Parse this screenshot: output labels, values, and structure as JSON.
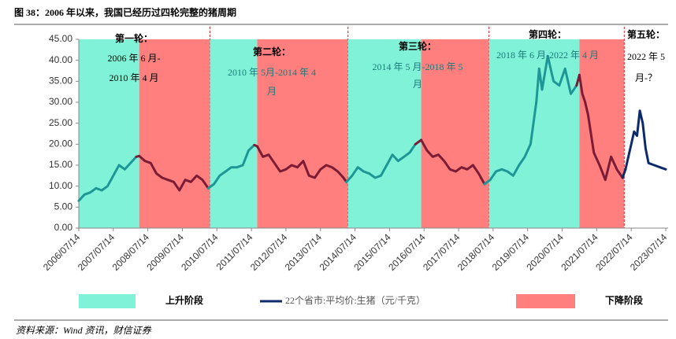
{
  "chart_data": {
    "type": "line",
    "title": "图 38：2006 年以来，我国已经历过四轮完整的猪周期",
    "source": "资料来源：Wind 资讯，财信证券",
    "ylim": [
      0,
      45
    ],
    "yticks": [
      {
        "value": 0,
        "label": "0.00"
      },
      {
        "value": 5,
        "label": "5.00"
      },
      {
        "value": 10,
        "label": "10.00"
      },
      {
        "value": 15,
        "label": "15.00"
      },
      {
        "value": 20,
        "label": "20.00"
      },
      {
        "value": 25,
        "label": "25.00"
      },
      {
        "value": 30,
        "label": "30.00"
      },
      {
        "value": 35,
        "label": "35.00"
      },
      {
        "value": 40,
        "label": "40.00"
      },
      {
        "value": 45,
        "label": "45.00"
      }
    ],
    "xlim": [
      "2006/07/14",
      "2023/07/14"
    ],
    "xticks": [
      "2006/07/14",
      "2007/07/14",
      "2008/07/14",
      "2009/07/14",
      "2010/07/14",
      "2011/07/14",
      "2012/07/14",
      "2013/07/14",
      "2014/07/14",
      "2015/07/14",
      "2016/07/14",
      "2017/07/14",
      "2018/07/14",
      "2019/07/14",
      "2020/07/14",
      "2021/07/14",
      "2022/07/14",
      "2023/07/14"
    ],
    "legend": {
      "rise": "上升阶段",
      "fall": "下降阶段"
    },
    "phase_colors": {
      "rise": "#80f2d8",
      "fall": "#ff7f7f"
    },
    "line_colors": {
      "rise": "#1f9696",
      "fall": "#7b1c34"
    },
    "divider_color": "#e0202a",
    "phases": [
      {
        "kind": "rise",
        "start": "2006/07/14",
        "end": "2008/04/14"
      },
      {
        "kind": "fall",
        "start": "2008/04/14",
        "end": "2010/05/01"
      },
      {
        "kind": "rise",
        "start": "2010/05/01",
        "end": "2011/09/14"
      },
      {
        "kind": "fall",
        "start": "2011/09/14",
        "end": "2014/05/01"
      },
      {
        "kind": "rise",
        "start": "2014/05/01",
        "end": "2016/06/14"
      },
      {
        "kind": "fall",
        "start": "2016/06/14",
        "end": "2018/06/01"
      },
      {
        "kind": "rise",
        "start": "2018/06/01",
        "end": "2021/01/14"
      },
      {
        "kind": "fall",
        "start": "2021/01/14",
        "end": "2022/05/01"
      }
    ],
    "annotations": [
      {
        "lines": [
          "第一轮：",
          "2006 年 6 月-",
          "2010 年 4 月"
        ],
        "colors": [
          "#000000",
          "#000000",
          "#000000"
        ]
      },
      {
        "lines": [
          "第二轮：",
          "2010 年 5月-2014 年 4",
          "月"
        ],
        "colors": [
          "#000000",
          "#1a7a7a",
          "#1a7a7a"
        ]
      },
      {
        "lines": [
          "第三轮：",
          "2014 年 5 月-2018 年 5",
          "月"
        ],
        "colors": [
          "#000000",
          "#1a7a7a",
          "#1a7a7a"
        ]
      },
      {
        "lines": [
          "第四轮：",
          "2018 年 6 月-2022 年 4 月"
        ],
        "colors": [
          "#000000",
          "#1a7a7a"
        ]
      },
      {
        "lines": [
          "第五轮：",
          "2022 年 5",
          "月-？"
        ],
        "colors": [
          "#000000",
          "#000000",
          "#000000"
        ]
      }
    ],
    "series": [
      {
        "name": "22个省市:平均价:生猪（元/千克）",
        "color": "#0d2a6b",
        "x": [
          "2006/07/14",
          "2006/09/14",
          "2006/11/14",
          "2007/01/14",
          "2007/03/14",
          "2007/05/14",
          "2007/07/14",
          "2007/09/14",
          "2007/11/14",
          "2008/01/14",
          "2008/03/14",
          "2008/04/14",
          "2008/06/14",
          "2008/08/14",
          "2008/10/14",
          "2008/12/14",
          "2009/02/14",
          "2009/04/14",
          "2009/06/14",
          "2009/08/14",
          "2009/10/14",
          "2009/12/14",
          "2010/02/14",
          "2010/04/14",
          "2010/06/14",
          "2010/08/14",
          "2010/10/14",
          "2010/12/14",
          "2011/02/14",
          "2011/04/14",
          "2011/06/14",
          "2011/08/14",
          "2011/09/14",
          "2011/11/14",
          "2012/01/14",
          "2012/03/14",
          "2012/05/14",
          "2012/07/14",
          "2012/09/14",
          "2012/11/14",
          "2013/01/14",
          "2013/03/14",
          "2013/05/14",
          "2013/07/14",
          "2013/09/14",
          "2013/11/14",
          "2014/01/14",
          "2014/03/14",
          "2014/04/14",
          "2014/06/14",
          "2014/08/14",
          "2014/10/14",
          "2014/12/14",
          "2015/02/14",
          "2015/04/14",
          "2015/06/14",
          "2015/08/14",
          "2015/10/14",
          "2015/12/14",
          "2016/02/14",
          "2016/04/14",
          "2016/06/14",
          "2016/08/14",
          "2016/10/14",
          "2016/12/14",
          "2017/02/14",
          "2017/04/14",
          "2017/06/14",
          "2017/08/14",
          "2017/10/14",
          "2017/12/14",
          "2018/02/14",
          "2018/04/14",
          "2018/06/14",
          "2018/08/14",
          "2018/10/14",
          "2018/12/14",
          "2019/02/14",
          "2019/04/14",
          "2019/06/14",
          "2019/08/14",
          "2019/10/14",
          "2019/11/14",
          "2019/12/14",
          "2020/01/14",
          "2020/02/14",
          "2020/03/14",
          "2020/04/14",
          "2020/06/14",
          "2020/08/14",
          "2020/10/14",
          "2020/12/14",
          "2021/01/14",
          "2021/02/14",
          "2021/03/14",
          "2021/04/14",
          "2021/06/14",
          "2021/08/14",
          "2021/10/14",
          "2021/12/14",
          "2022/02/14",
          "2022/04/14",
          "2022/05/14",
          "2022/07/14",
          "2022/08/14",
          "2022/09/14",
          "2022/10/14",
          "2022/11/14",
          "2022/12/14",
          "2023/01/14",
          "2023/03/14",
          "2023/05/14",
          "2023/07/14"
        ],
        "values": [
          6.5,
          8,
          8.5,
          9.5,
          9,
          10,
          12.5,
          15,
          14,
          15.5,
          17,
          17.2,
          16,
          15.5,
          13,
          12,
          11.5,
          11,
          9,
          11.5,
          11,
          12.5,
          11.5,
          9.5,
          10.5,
          12.5,
          13.5,
          14.5,
          14.5,
          15,
          18.5,
          19.8,
          19.5,
          17,
          17.5,
          15.5,
          13.5,
          14,
          15,
          14.5,
          16,
          12.5,
          12,
          14,
          15,
          14.5,
          13.5,
          12,
          11,
          12.5,
          14.5,
          13.5,
          13,
          12,
          12.5,
          15,
          17.5,
          16,
          17,
          18,
          20,
          21,
          18.5,
          17,
          17.5,
          16,
          14,
          13.5,
          14.5,
          14,
          15,
          13,
          10.5,
          11.5,
          13.5,
          14,
          13.5,
          12.5,
          15,
          17,
          20,
          30,
          38,
          33,
          37,
          41,
          38,
          35,
          34,
          38,
          32,
          34,
          36.5,
          32,
          30,
          27,
          18,
          15,
          11.5,
          17,
          14,
          12,
          14,
          20,
          23,
          22,
          28,
          25,
          19,
          15.5,
          15,
          14.5,
          14
        ]
      }
    ]
  }
}
